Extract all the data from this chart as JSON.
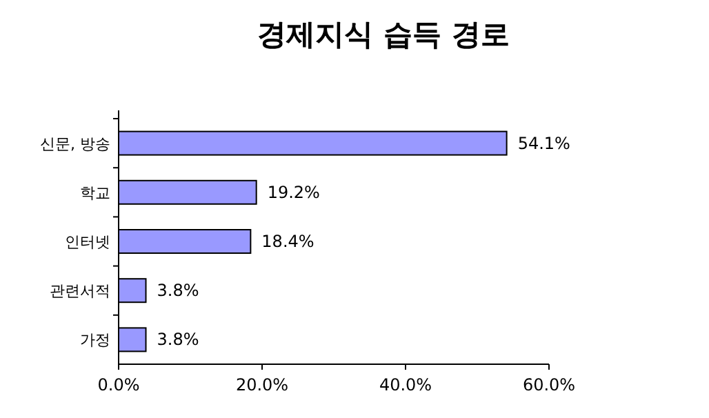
{
  "chart_data": {
    "type": "bar",
    "orientation": "horizontal",
    "title": "경제지식 습득 경로",
    "categories": [
      "신문, 방송",
      "학교",
      "인터넷",
      "관련서적",
      "가정"
    ],
    "values": [
      54.1,
      19.2,
      18.4,
      3.8,
      3.8
    ],
    "value_labels": [
      "54.1%",
      "19.2%",
      "18.4%",
      "3.8%",
      "3.8%"
    ],
    "color": "#9999ff",
    "xlim": [
      0,
      60
    ],
    "xticks": [
      {
        "value": 0,
        "label": "0.0%"
      },
      {
        "value": 20,
        "label": "20.0%"
      },
      {
        "value": 40,
        "label": "40.0%"
      },
      {
        "value": 60,
        "label": "60.0%"
      }
    ],
    "grid": false
  }
}
